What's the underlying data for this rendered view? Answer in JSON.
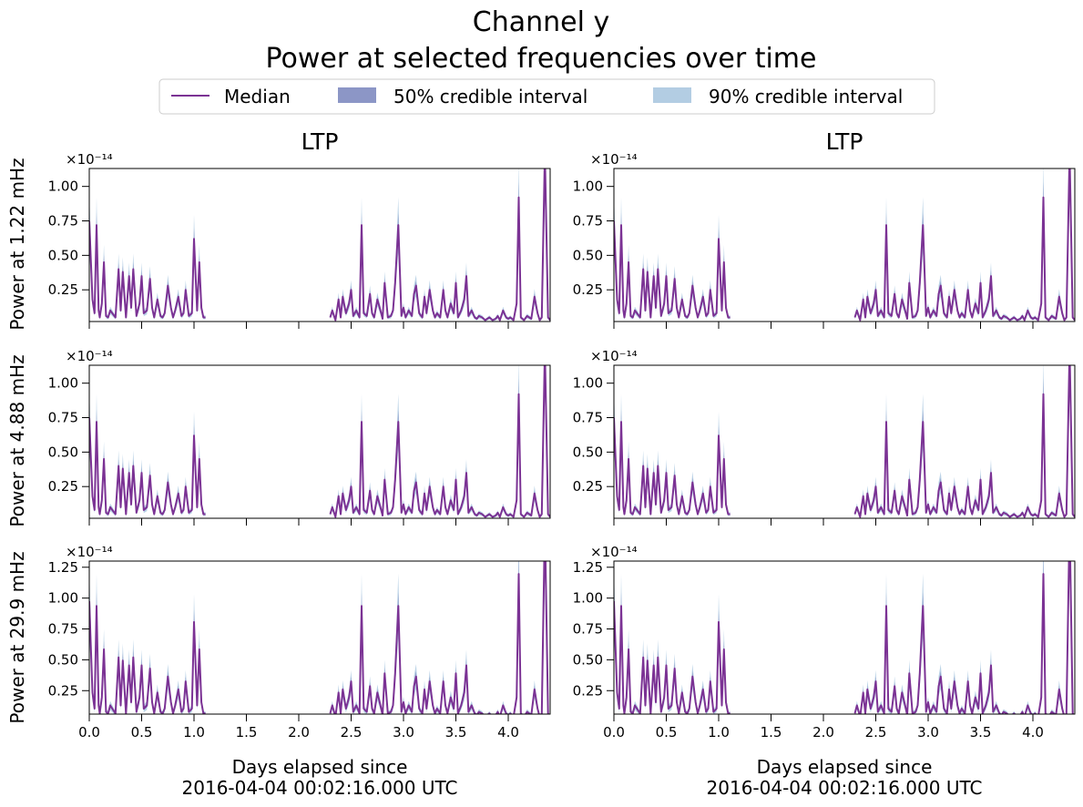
{
  "title_line1": "Channel y",
  "title_line2": "Power at selected frequencies over time",
  "legend": {
    "median": "Median",
    "ci50": "50% credible interval",
    "ci90": "90% credible interval"
  },
  "colors": {
    "median": "#7b3294",
    "ci50": "#8c96c6",
    "ci90": "#b3cde3",
    "axis": "#000000"
  },
  "chart_data": {
    "type": "line",
    "multiplier": "×10⁻¹⁴",
    "columns": [
      {
        "title": "LTP"
      },
      {
        "title": "LTP"
      }
    ],
    "rows": [
      {
        "ylabel": "Power at 1.22 mHz",
        "ylim": [
          0.02,
          1.13
        ],
        "yticks": [
          0.25,
          0.5,
          0.75,
          1.0
        ],
        "ytick_labels": [
          "0.25",
          "0.50",
          "0.75",
          "1.00"
        ],
        "scale": 1.0
      },
      {
        "ylabel": "Power at 4.88 mHz",
        "ylim": [
          0.02,
          1.13
        ],
        "yticks": [
          0.25,
          0.5,
          0.75,
          1.0
        ],
        "ytick_labels": [
          "0.25",
          "0.50",
          "0.75",
          "1.00"
        ],
        "scale": 1.0
      },
      {
        "ylabel": "Power at 29.9 mHz",
        "ylim": [
          0.06,
          1.3
        ],
        "yticks": [
          0.25,
          0.5,
          0.75,
          1.0,
          1.25
        ],
        "ytick_labels": [
          "0.25",
          "0.50",
          "0.75",
          "1.00",
          "1.25"
        ],
        "scale": 1.3
      }
    ],
    "xlim": [
      0.0,
      4.4
    ],
    "xticks": [
      0.0,
      0.5,
      1.0,
      1.5,
      2.0,
      2.5,
      3.0,
      3.5,
      4.0
    ],
    "xtick_labels": [
      "0.0",
      "0.5",
      "1.0",
      "1.5",
      "2.0",
      "2.5",
      "3.0",
      "3.5",
      "4.0"
    ],
    "xlabel_line1": "Days elapsed since",
    "xlabel_line2": "2016-04-04 00:02:16.000 UTC",
    "series": [
      {
        "name": "Median",
        "segments": [
          {
            "x": [
              0.0,
              0.03,
              0.05,
              0.07,
              0.09,
              0.1,
              0.12,
              0.14,
              0.16,
              0.18,
              0.2,
              0.22,
              0.25,
              0.28,
              0.3,
              0.32,
              0.35,
              0.38,
              0.4,
              0.42,
              0.45,
              0.48,
              0.5,
              0.52,
              0.55,
              0.58,
              0.6,
              0.62,
              0.65,
              0.68,
              0.7,
              0.72,
              0.75,
              0.78,
              0.8,
              0.82,
              0.85,
              0.88,
              0.9,
              0.92,
              0.95,
              0.98,
              1.0,
              1.03,
              1.05,
              1.07,
              1.09,
              1.11
            ],
            "y": [
              0.75,
              0.18,
              0.08,
              0.72,
              0.1,
              0.05,
              0.15,
              0.45,
              0.06,
              0.05,
              0.1,
              0.08,
              0.05,
              0.4,
              0.1,
              0.38,
              0.05,
              0.35,
              0.12,
              0.4,
              0.06,
              0.15,
              0.35,
              0.08,
              0.1,
              0.33,
              0.12,
              0.05,
              0.18,
              0.06,
              0.05,
              0.08,
              0.28,
              0.12,
              0.05,
              0.1,
              0.2,
              0.06,
              0.08,
              0.25,
              0.06,
              0.08,
              0.62,
              0.1,
              0.45,
              0.12,
              0.05,
              0.05
            ]
          },
          {
            "x": [
              2.3,
              2.32,
              2.35,
              2.38,
              2.4,
              2.42,
              2.45,
              2.48,
              2.5,
              2.52,
              2.55,
              2.58,
              2.6,
              2.62,
              2.65,
              2.68,
              2.7,
              2.72,
              2.75,
              2.78,
              2.8,
              2.82,
              2.85,
              2.88,
              2.9,
              2.92,
              2.95,
              2.98,
              3.0,
              3.02,
              3.05,
              3.08,
              3.1,
              3.12,
              3.15,
              3.18,
              3.2,
              3.22,
              3.25,
              3.28,
              3.3,
              3.32,
              3.35,
              3.38,
              3.4,
              3.42,
              3.45,
              3.48,
              3.5,
              3.52,
              3.55,
              3.58,
              3.6,
              3.62,
              3.65,
              3.68,
              3.7,
              3.72,
              3.75,
              3.78,
              3.8,
              3.82,
              3.85,
              3.88,
              3.9,
              3.92,
              3.95,
              3.98,
              4.0,
              4.02,
              4.05,
              4.08,
              4.1,
              4.12,
              4.15,
              4.18,
              4.2,
              4.22,
              4.25,
              4.28,
              4.3,
              4.32,
              4.35,
              4.38,
              4.4
            ],
            "y": [
              0.05,
              0.1,
              0.03,
              0.18,
              0.05,
              0.2,
              0.08,
              0.15,
              0.25,
              0.06,
              0.1,
              0.05,
              0.72,
              0.08,
              0.06,
              0.22,
              0.08,
              0.05,
              0.18,
              0.1,
              0.04,
              0.3,
              0.05,
              0.06,
              0.1,
              0.3,
              0.72,
              0.06,
              0.12,
              0.05,
              0.1,
              0.06,
              0.22,
              0.28,
              0.08,
              0.05,
              0.2,
              0.08,
              0.25,
              0.1,
              0.05,
              0.08,
              0.05,
              0.25,
              0.1,
              0.05,
              0.15,
              0.08,
              0.3,
              0.05,
              0.1,
              0.18,
              0.35,
              0.06,
              0.1,
              0.05,
              0.04,
              0.06,
              0.05,
              0.03,
              0.04,
              0.05,
              0.03,
              0.04,
              0.06,
              0.03,
              0.1,
              0.05,
              0.04,
              0.05,
              0.03,
              0.15,
              0.92,
              0.05,
              0.03,
              0.06,
              0.05,
              0.04,
              0.2,
              0.08,
              0.03,
              0.05,
              1.25,
              0.05,
              0.03
            ]
          }
        ]
      },
      {
        "name": "50% credible interval",
        "relative_halfwidth": 0.12
      },
      {
        "name": "90% credible interval",
        "relative_halfwidth": 0.28
      }
    ]
  }
}
